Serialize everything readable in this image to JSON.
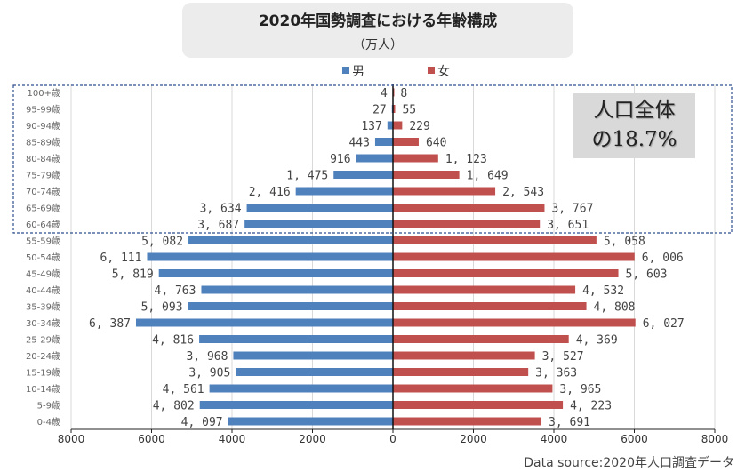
{
  "chart_data": {
    "type": "bar",
    "orientation": "horizontal-pyramid",
    "title": "2020年国勢調査における年齢構成",
    "subtitle": "（万人）",
    "categories": [
      "100+歳",
      "95-99歳",
      "90-94歳",
      "85-89歳",
      "80-84歳",
      "75-79歳",
      "70-74歳",
      "65-69歳",
      "60-64歳",
      "55-59歳",
      "50-54歳",
      "45-49歳",
      "40-44歳",
      "35-39歳",
      "30-34歳",
      "25-29歳",
      "20-24歳",
      "15-19歳",
      "10-14歳",
      "5-9歳",
      "0-4歳"
    ],
    "series": [
      {
        "name": "男",
        "color": "#4f81bd",
        "values": [
          4,
          27,
          137,
          443,
          916,
          1475,
          2416,
          3634,
          3687,
          5082,
          6111,
          5819,
          4763,
          5093,
          6387,
          4816,
          3968,
          3905,
          4561,
          4802,
          4097
        ],
        "labels": [
          "4",
          "27",
          "137",
          "443",
          "916",
          "1, 475",
          "2, 416",
          "3, 634",
          "3, 687",
          "5, 082",
          "6, 111",
          "5, 819",
          "4, 763",
          "5, 093",
          "6, 387",
          "4, 816",
          "3, 968",
          "3, 905",
          "4, 561",
          "4, 802",
          "4, 097"
        ]
      },
      {
        "name": "女",
        "color": "#c0504d",
        "values": [
          8,
          55,
          229,
          640,
          1123,
          1649,
          2543,
          3767,
          3651,
          5058,
          6006,
          5603,
          4532,
          4808,
          6027,
          4369,
          3527,
          3363,
          3965,
          4223,
          3691
        ],
        "labels": [
          "8",
          "55",
          "229",
          "640",
          "1, 123",
          "1, 649",
          "2, 543",
          "3, 767",
          "3, 651",
          "5, 058",
          "6, 006",
          "5, 603",
          "4, 532",
          "4, 808",
          "6, 027",
          "4, 369",
          "3, 527",
          "3, 363",
          "3, 965",
          "4, 223",
          "3, 691"
        ]
      }
    ],
    "xlim": [
      -8000,
      8000
    ],
    "xticks": [
      "8000",
      "6000",
      "4000",
      "2000",
      "0",
      "2000",
      "4000",
      "6000",
      "8000"
    ],
    "grid": true,
    "legend": "top",
    "highlight": {
      "range": "60-64歳 〜 100+歳",
      "text_line1": "人口全体",
      "text_line2": "の18.7%"
    },
    "source": "Data source:2020年人口調査データ"
  }
}
